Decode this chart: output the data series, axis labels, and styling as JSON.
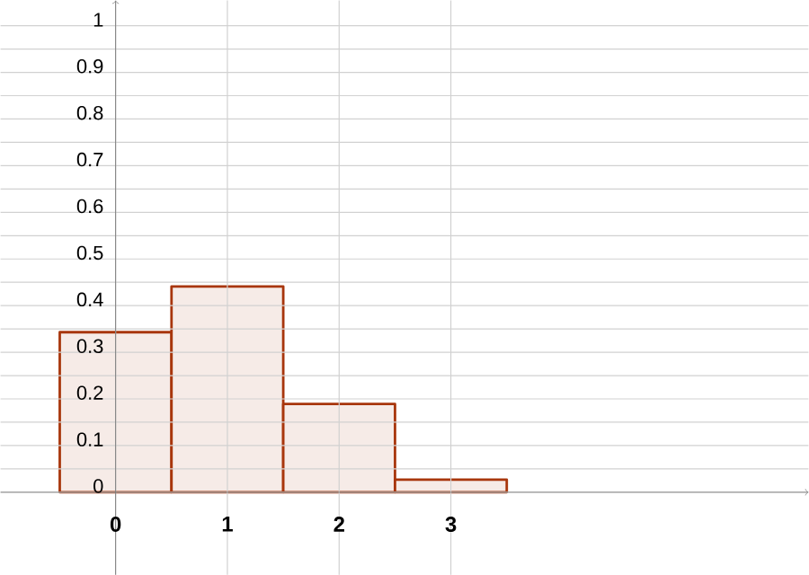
{
  "chart_data": {
    "type": "histogram",
    "bins": [
      -0.5,
      0.5,
      1.5,
      2.5,
      3.5
    ],
    "values": [
      0.343,
      0.441,
      0.189,
      0.027
    ],
    "color": "#a8360c",
    "xlim": [
      -1.03,
      6.2
    ],
    "ylim": [
      -0.177,
      1.054
    ],
    "xticks": [
      0,
      1,
      2,
      3
    ],
    "yticks": [
      0,
      0.1,
      0.2,
      0.3,
      0.4,
      0.5,
      0.6,
      0.7,
      0.8,
      0.9,
      1
    ],
    "grid": true
  }
}
